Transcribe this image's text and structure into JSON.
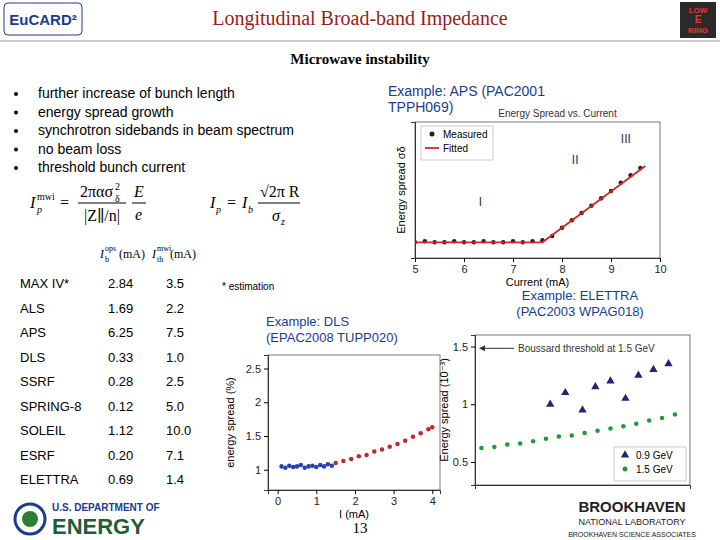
{
  "header": {
    "logo_left": "EuCARD²",
    "title": "Longitudinal Broad-band Impedance",
    "logo_right": [
      "LOW",
      "E",
      "RING"
    ],
    "subtitle": "Microwave instability"
  },
  "bullets": [
    "further increase of bunch length",
    "energy spread growth",
    "synchrotron sidebands in beam spectrum",
    "no beam loss",
    "threshold bunch current"
  ],
  "formula1": {
    "lhs": "I",
    "lhs_sub": "p",
    "lhs_sup": "mwi",
    "eq": "=",
    "num": "2πασ",
    "num_sub": "δ",
    "num_sup": "2",
    "den": "|Z∥/n|",
    "frac2_num": "E",
    "frac2_den": "e"
  },
  "formula2": {
    "lhs": "I",
    "lhs_sub": "p",
    "eq": "=",
    "rhs": "I",
    "rhs_sub": "b",
    "num": "√2π R",
    "den": "σ",
    "den_sub": "z"
  },
  "table": {
    "columns": [
      {
        "main": "I",
        "sub": "b",
        "sup": "ops",
        "unit": " (mA)"
      },
      {
        "main": "I",
        "sub": "th",
        "sup": "mwi",
        "unit": " (mA)"
      }
    ],
    "rows": [
      [
        "MAX IV*",
        "2.84",
        "3.5"
      ],
      [
        "ALS",
        "1.69",
        "2.2"
      ],
      [
        "APS",
        "6.25",
        "7.5"
      ],
      [
        "DLS",
        "0.33",
        "1.0"
      ],
      [
        "SSRF",
        "0.28",
        "2.5"
      ],
      [
        "SPRING-8",
        "0.12",
        "5.0"
      ],
      [
        "SOLEIL",
        "1.12",
        "10.0"
      ],
      [
        "ESRF",
        "0.20",
        "7.1"
      ],
      [
        "ELETTRA",
        "0.69",
        "1.4"
      ]
    ],
    "note": "* estimation"
  },
  "examples": {
    "aps": [
      "Example: APS (PAC2001",
      "TPPH069)"
    ],
    "dls": [
      "Example: DLS",
      "(EPAC2008 TUPP020)"
    ],
    "elettra": [
      "Example: ELETTRA",
      "(PAC2003 WPAG018)"
    ]
  },
  "chart_data": [
    {
      "type": "scatter",
      "title": "Energy Spread vs. Current",
      "x_label": "Current (mA)",
      "y_label": "Energy spread σδ",
      "xlim": [
        5,
        10
      ],
      "xticks": [
        5,
        6,
        7,
        8,
        9,
        10
      ],
      "ylim": [
        0,
        1.3
      ],
      "tick_labels": "x",
      "legend": "upper left",
      "annotations": [
        {
          "text": "I",
          "x": 6.3,
          "y": 0.5
        },
        {
          "text": "II",
          "x": 8.2,
          "y": 0.9
        },
        {
          "text": "III",
          "x": 9.2,
          "y": 1.1
        }
      ],
      "series": [
        {
          "name": "Measured",
          "color": "#222222",
          "marker": "circle",
          "x": [
            5.0,
            5.2,
            5.4,
            5.6,
            5.8,
            6.0,
            6.2,
            6.4,
            6.6,
            6.8,
            7.0,
            7.2,
            7.4,
            7.6,
            7.8,
            8.0,
            8.2,
            8.4,
            8.6,
            8.8,
            9.0,
            9.2,
            9.4,
            9.6
          ],
          "values": [
            0.15,
            0.16,
            0.15,
            0.15,
            0.16,
            0.15,
            0.15,
            0.16,
            0.15,
            0.15,
            0.16,
            0.15,
            0.16,
            0.17,
            0.21,
            0.29,
            0.36,
            0.43,
            0.5,
            0.57,
            0.64,
            0.72,
            0.79,
            0.86
          ]
        },
        {
          "name": "Fitted",
          "color": "#d62728",
          "type": "line",
          "line_style": "solid",
          "x": [
            5.0,
            7.6,
            9.7
          ],
          "values": [
            0.15,
            0.15,
            0.88
          ]
        }
      ]
    },
    {
      "type": "scatter",
      "x_label": "I (mA)",
      "y_label": "energy spread (%)",
      "xlim": [
        -0.25,
        4.2
      ],
      "xticks": [
        0,
        1,
        2,
        3,
        4
      ],
      "ylim": [
        0.7,
        2.7
      ],
      "yticks": [
        1,
        1.5,
        2,
        2.5
      ],
      "series": [
        {
          "color": "#2b3fb0",
          "marker": "circle",
          "x": [
            0.1,
            0.2,
            0.3,
            0.4,
            0.5,
            0.6,
            0.7,
            0.8,
            0.9,
            1.0,
            1.1,
            1.2,
            1.3,
            1.4
          ],
          "values": [
            1.05,
            1.03,
            1.06,
            1.04,
            1.05,
            1.07,
            1.03,
            1.05,
            1.06,
            1.04,
            1.07,
            1.05,
            1.08,
            1.06
          ]
        },
        {
          "color": "#c0282d",
          "marker": "circle",
          "x": [
            1.5,
            1.7,
            1.9,
            2.1,
            2.3,
            2.5,
            2.7,
            2.9,
            3.1,
            3.3,
            3.5,
            3.7,
            3.9,
            4.0
          ],
          "values": [
            1.1,
            1.13,
            1.16,
            1.2,
            1.22,
            1.27,
            1.3,
            1.34,
            1.38,
            1.43,
            1.49,
            1.54,
            1.6,
            1.63
          ]
        }
      ]
    },
    {
      "type": "scatter",
      "y_label": "Energy spread (10⁻³)",
      "xlim": [
        0,
        10
      ],
      "ylim": [
        0.3,
        1.6
      ],
      "yticks": [
        0.5,
        1,
        1.5
      ],
      "tick_labels": "y",
      "legend": "lower right",
      "annotations": [
        {
          "text": "Boussard threshold at 1.5 GeV",
          "x": 2.0,
          "y": 1.45
        }
      ],
      "series": [
        {
          "name": "0.9 GeV",
          "color": "#23237a",
          "marker": "triangle",
          "x": [
            3.5,
            4.2,
            5.0,
            5.6,
            6.3,
            7.0,
            7.6,
            8.3,
            9.0
          ],
          "values": [
            1.0,
            1.1,
            0.95,
            1.15,
            1.2,
            1.05,
            1.25,
            1.3,
            1.35
          ]
        },
        {
          "name": "1.5 GeV",
          "color": "#1f9a3a",
          "marker": "circle",
          "x": [
            0.3,
            0.9,
            1.5,
            2.1,
            2.7,
            3.3,
            3.9,
            4.5,
            5.1,
            5.7,
            6.3,
            6.9,
            7.5,
            8.1,
            8.7,
            9.3
          ],
          "values": [
            0.62,
            0.63,
            0.65,
            0.66,
            0.68,
            0.7,
            0.72,
            0.73,
            0.75,
            0.77,
            0.79,
            0.81,
            0.83,
            0.86,
            0.88,
            0.91
          ]
        }
      ]
    }
  ],
  "footer": {
    "doe": [
      "U.S. DEPARTMENT OF",
      "ENERGY"
    ],
    "page": "13",
    "bnl": [
      "BROOKHAVEN",
      "NATIONAL LABORATORY",
      "BROOKHAVEN SCIENCE ASSOCIATES"
    ]
  }
}
